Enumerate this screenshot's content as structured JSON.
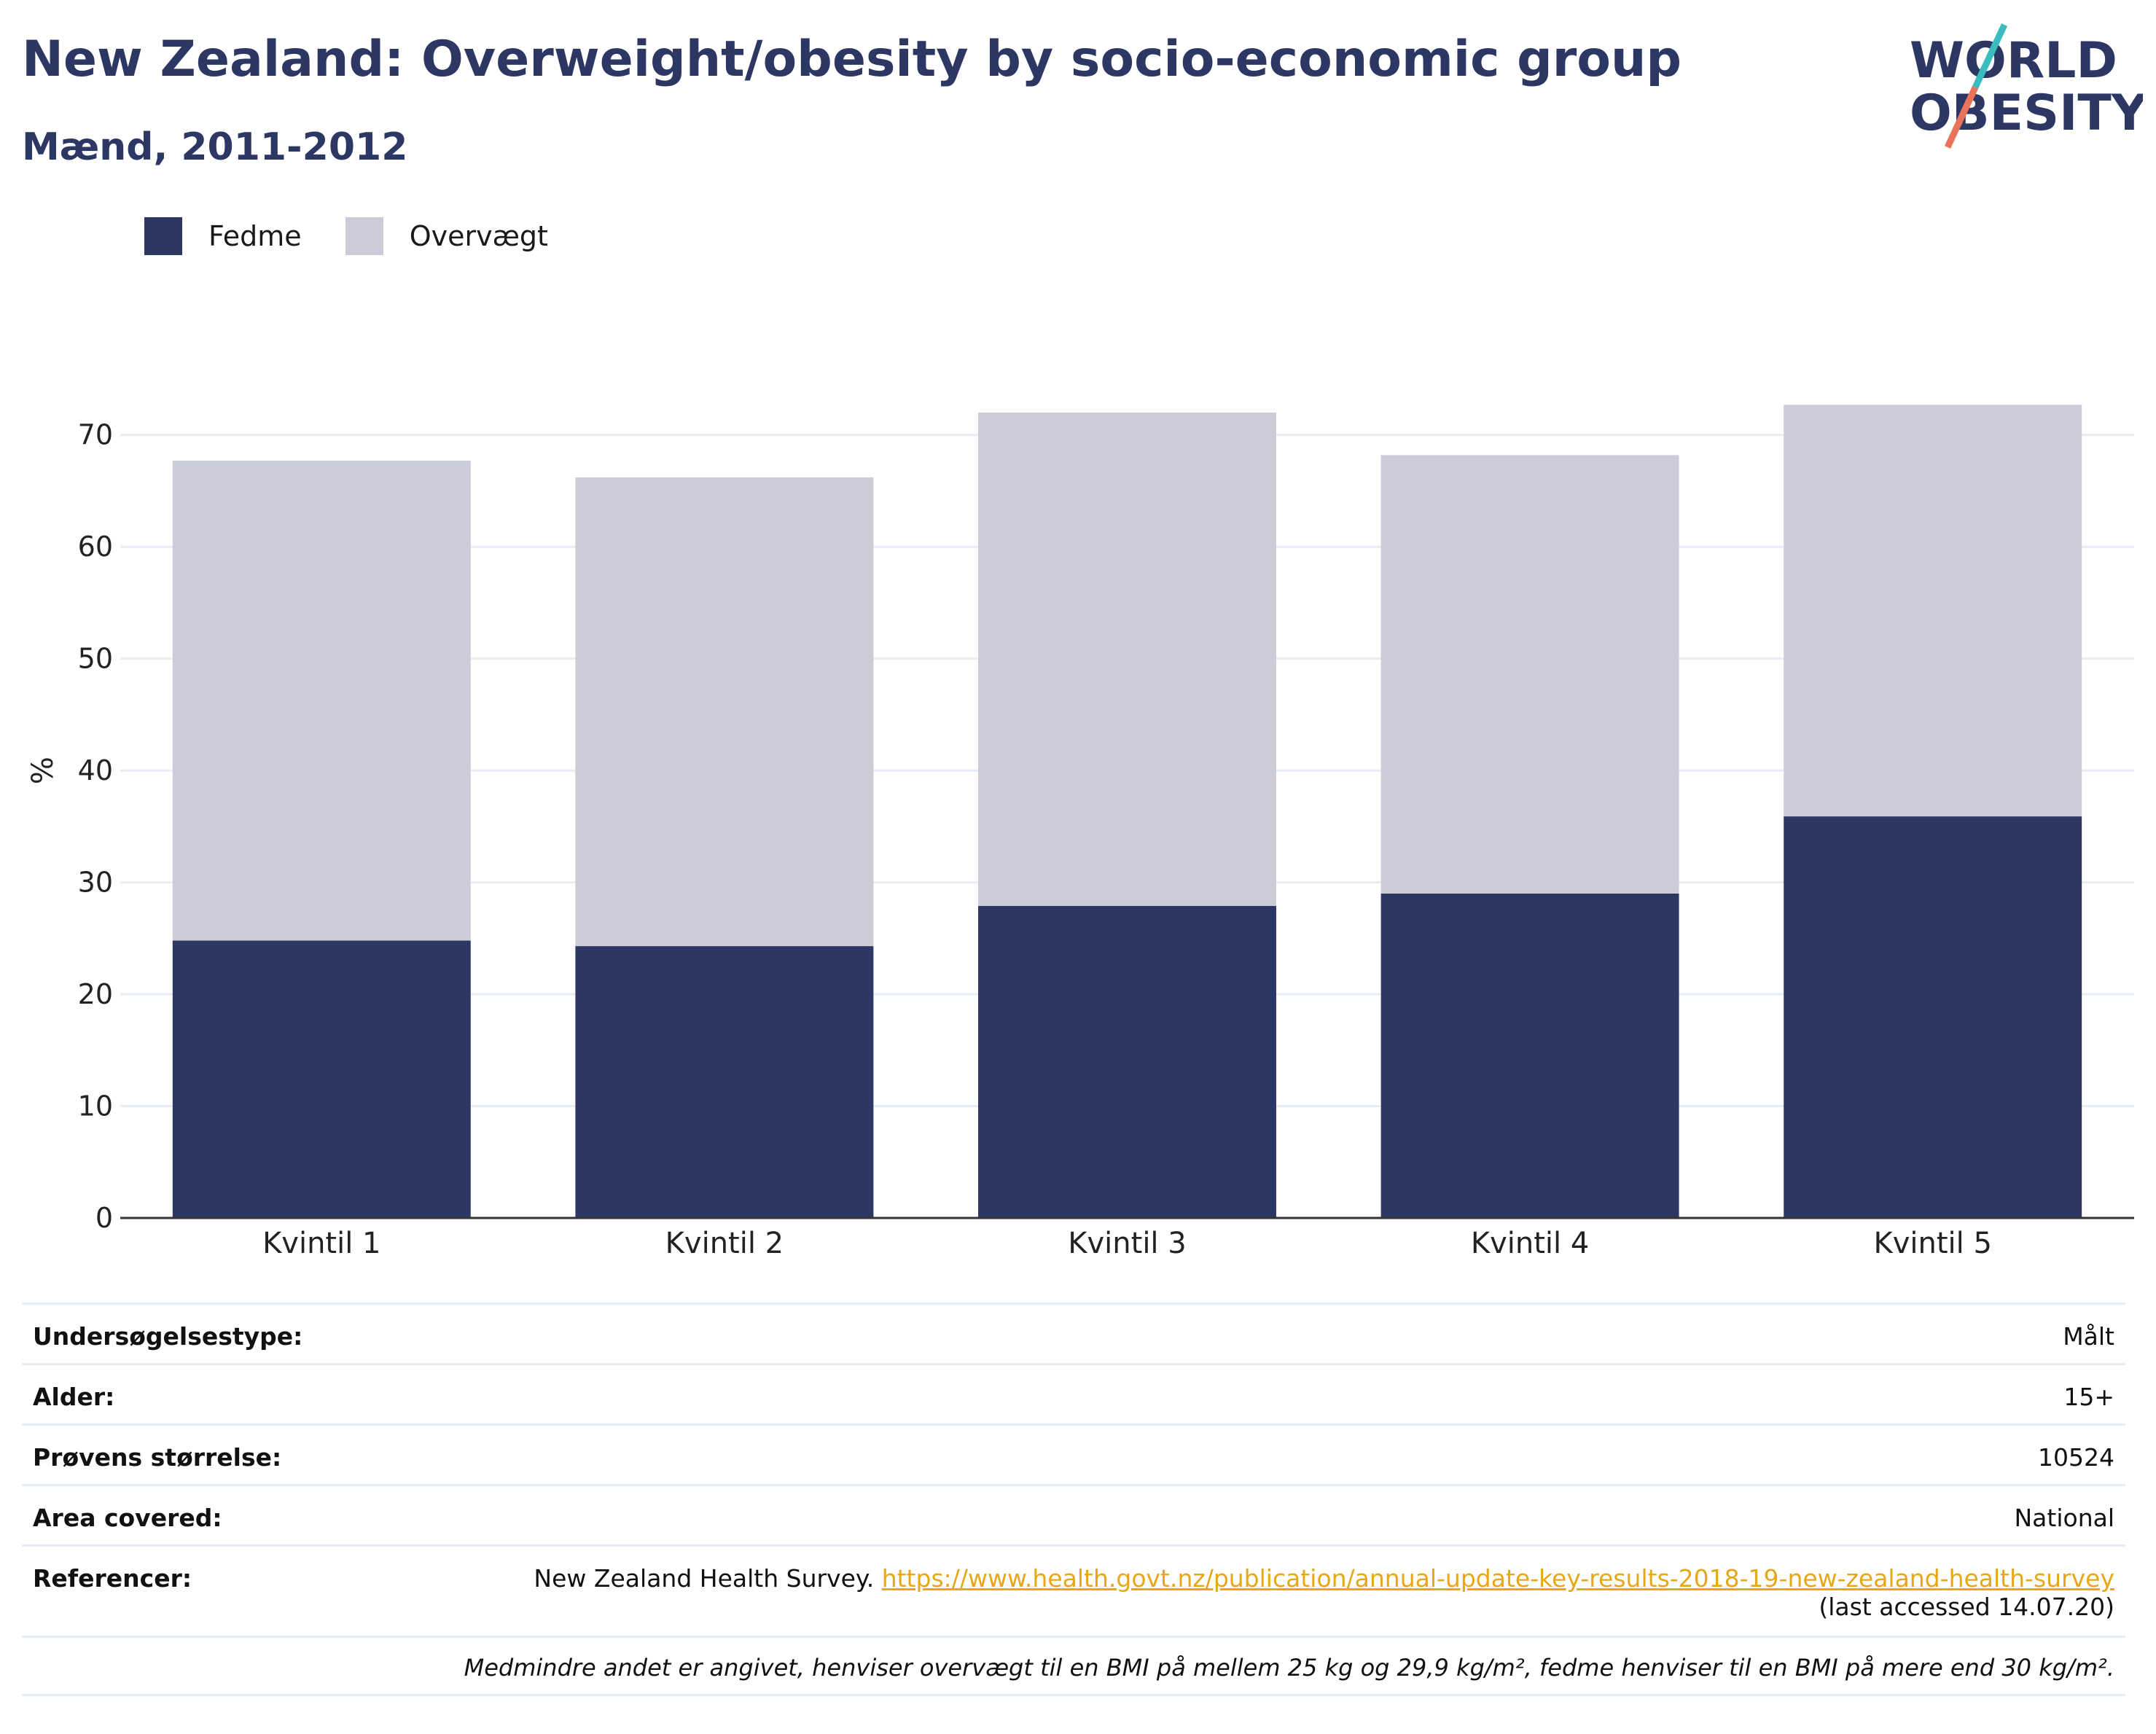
{
  "title": "New Zealand: Overweight/obesity by socio-economic group",
  "subtitle": "Mænd, 2011-2012",
  "logo": {
    "line1": "WORLD",
    "line2": "OBESITY"
  },
  "colors": {
    "fedme": "#2c3764",
    "overvaegt": "#cbccd8",
    "title": "#2c3764",
    "link": "#e6a817"
  },
  "chart_data": {
    "type": "bar",
    "stacked": true,
    "categories": [
      "Kvintil 1",
      "Kvintil 2",
      "Kvintil 3",
      "Kvintil 4",
      "Kvintil 5"
    ],
    "series": [
      {
        "name": "Fedme",
        "values": [
          24.8,
          24.3,
          27.9,
          29.0,
          35.9
        ]
      },
      {
        "name": "Overvægt",
        "values": [
          42.9,
          41.9,
          44.1,
          39.2,
          36.8
        ]
      }
    ],
    "ylabel": "%",
    "ylim": [
      0,
      75
    ],
    "yticks": [
      0,
      10,
      20,
      30,
      40,
      50,
      60,
      70
    ],
    "grid": true,
    "legend_position": "top-left"
  },
  "meta": {
    "survey_type": {
      "label": "Undersøgelsestype:",
      "value": "Målt"
    },
    "age": {
      "label": "Alder:",
      "value": "15+"
    },
    "sample_size": {
      "label": "Prøvens størrelse:",
      "value": "10524"
    },
    "area": {
      "label": "Area covered:",
      "value": "National"
    },
    "references": {
      "label": "Referencer:",
      "text": "New Zealand Health Survey.",
      "url": "https://www.health.govt.nz/publication/annual-update-key-results-2018-19-new-zealand-health-survey",
      "accessed": "(last accessed 14.07.20)"
    },
    "note": "Medmindre andet er angivet, henviser overvægt til en BMI på mellem 25 kg og 29,9 kg/m², fedme henviser til en BMI på mere end 30 kg/m²."
  }
}
